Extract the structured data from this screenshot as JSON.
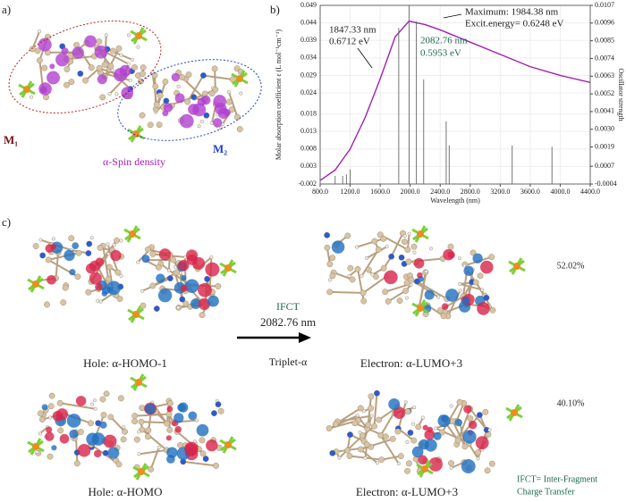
{
  "panel_labels": [
    "a)",
    "b)",
    "c)"
  ],
  "panel_a": {
    "fragments": [
      "M₁",
      "M₂"
    ],
    "caption": "α-Spin density"
  },
  "chart_data": {
    "type": "line",
    "x_label": "Wavelength (nm)",
    "y_label": "Molar absorption coefficient ε (L mol⁻¹cm⁻¹)",
    "y2_label": "Oscillator strength",
    "x": [
      800,
      1000,
      1200,
      1400,
      1600,
      1800,
      1984.38,
      2200,
      2400,
      2800,
      3200,
      3600,
      4000,
      4400
    ],
    "series": [
      {
        "color": "#a020b0",
        "values": [
          -0.001,
          0.002,
          0.008,
          0.017,
          0.028,
          0.04,
          0.0445,
          0.0435,
          0.042,
          0.0385,
          0.035,
          0.0315,
          0.029,
          0.027
        ]
      },
      {
        "color": "#666666",
        "axis": "y2",
        "x": [
          1000,
          1100,
          1150,
          1200,
          1847.33,
          1984.38,
          2082.76,
          2180,
          2480,
          2520,
          3360,
          3890
        ],
        "values": [
          0.0001,
          0.0001,
          0.0002,
          0.0005,
          0.0093,
          0.0107,
          0.0097,
          0.0061,
          0.0035,
          0.002,
          0.002,
          0.0019
        ]
      }
    ],
    "xlim": [
      800,
      4400
    ],
    "xticks": [
      {
        "value": 800,
        "label": "800.0"
      },
      {
        "value": 1200,
        "label": "1200.0"
      },
      {
        "value": 1600,
        "label": "1600.0"
      },
      {
        "value": 2000,
        "label": "2000.0"
      },
      {
        "value": 2400,
        "label": "2400.0"
      },
      {
        "value": 2800,
        "label": "2800.0"
      },
      {
        "value": 3200,
        "label": "3200.0"
      },
      {
        "value": 3600,
        "label": "3600.0"
      },
      {
        "value": 4000,
        "label": "4000.0"
      },
      {
        "value": 4400,
        "label": "4400.0"
      }
    ],
    "ylim": [
      -0.002,
      0.049
    ],
    "yticks": [
      -0.002,
      0.003,
      0.008,
      0.013,
      0.018,
      0.024,
      0.029,
      0.034,
      0.039,
      0.044,
      0.049
    ],
    "y2lim": [
      -0.0004,
      0.0107
    ],
    "y2ticks": [
      -0.0004,
      0.0007,
      0.0019,
      {
        "value": 0.003,
        "label": "0.0030"
      },
      0.0041,
      0.0052,
      0.0063,
      0.0074,
      0.0085,
      0.0096,
      0.0107
    ],
    "grid": true,
    "annotations": [
      "Maximum: 1984.38 nm",
      "Excit.energy= 0.6248 eV",
      "1847.33 nm",
      "0.6712 eV",
      "2082.76 nm",
      "0.5953 eV"
    ]
  },
  "panel_c": {
    "transition": {
      "type": "IFCT",
      "wavelength": "2082.76 nm",
      "state": "Triplet-α"
    },
    "rows": [
      {
        "hole": "Hole: α-HOMO-1",
        "electron": "Electron: α-LUMO+3",
        "contribution": "52.02%"
      },
      {
        "hole": "Hole: α-HOMO",
        "electron": "Electron: α-LUMO+3",
        "contribution": "40.10%"
      }
    ],
    "legend": [
      "IFCT= Inter-Fragment",
      "Charge Transfer"
    ]
  }
}
